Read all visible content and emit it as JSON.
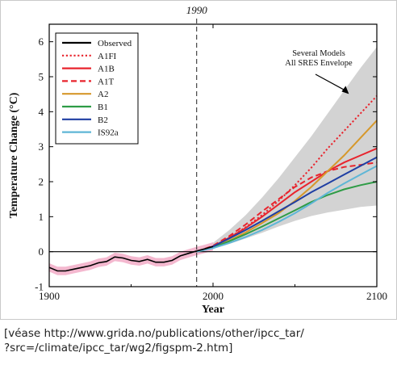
{
  "chart_data": {
    "type": "line",
    "top_label": "1990",
    "xlabel": "Year",
    "ylabel": "Temperature Change (°C)",
    "xlim": [
      1900,
      2100
    ],
    "ylim": [
      -1,
      6.5
    ],
    "x_ticks": [
      1900,
      2000,
      2100
    ],
    "y_ticks": [
      -1,
      0,
      1,
      2,
      3,
      4,
      5,
      6
    ],
    "vline_x": 1990,
    "grid": false,
    "legend_position": "top-left",
    "annotation": {
      "text": [
        "Several Models",
        "All SRES Envelope"
      ],
      "points_to": [
        2080,
        4.6
      ]
    },
    "envelope": {
      "x": [
        1990,
        2000,
        2010,
        2020,
        2030,
        2040,
        2050,
        2060,
        2070,
        2080,
        2090,
        2100
      ],
      "upper": [
        0,
        0.25,
        0.62,
        1.05,
        1.55,
        2.1,
        2.7,
        3.3,
        3.95,
        4.6,
        5.25,
        5.85
      ],
      "lower": [
        0,
        0.08,
        0.22,
        0.38,
        0.54,
        0.72,
        0.88,
        1.02,
        1.12,
        1.2,
        1.28,
        1.32
      ]
    },
    "observed": {
      "x": [
        1900,
        1905,
        1910,
        1915,
        1920,
        1925,
        1930,
        1935,
        1940,
        1945,
        1950,
        1955,
        1960,
        1965,
        1970,
        1975,
        1980,
        1985,
        1990,
        1995,
        2000
      ],
      "y": [
        -0.45,
        -0.55,
        -0.55,
        -0.5,
        -0.45,
        -0.4,
        -0.32,
        -0.28,
        -0.15,
        -0.18,
        -0.25,
        -0.28,
        -0.22,
        -0.3,
        -0.3,
        -0.25,
        -0.12,
        -0.05,
        0.02,
        0.08,
        0.15
      ],
      "band_halfwidth": 0.12
    },
    "series": [
      {
        "name": "Observed",
        "color": "#000000",
        "dash": "solid"
      },
      {
        "name": "A1FI",
        "color": "#e8242d",
        "dash": "dotted",
        "x": [
          1990,
          2000,
          2010,
          2020,
          2030,
          2040,
          2050,
          2060,
          2070,
          2080,
          2090,
          2100
        ],
        "y": [
          0,
          0.15,
          0.4,
          0.7,
          1.05,
          1.45,
          1.9,
          2.4,
          2.95,
          3.45,
          3.95,
          4.45
        ]
      },
      {
        "name": "A1B",
        "color": "#e8242d",
        "dash": "solid",
        "x": [
          1990,
          2000,
          2010,
          2020,
          2030,
          2040,
          2050,
          2060,
          2070,
          2080,
          2090,
          2100
        ],
        "y": [
          0,
          0.15,
          0.4,
          0.68,
          1.0,
          1.35,
          1.7,
          2.0,
          2.3,
          2.55,
          2.75,
          2.95
        ]
      },
      {
        "name": "A1T",
        "color": "#e8242d",
        "dash": "dashed",
        "x": [
          1990,
          2000,
          2010,
          2020,
          2030,
          2040,
          2050,
          2060,
          2070,
          2080,
          2090,
          2100
        ],
        "y": [
          0,
          0.17,
          0.45,
          0.78,
          1.15,
          1.5,
          1.85,
          2.12,
          2.3,
          2.42,
          2.48,
          2.55
        ]
      },
      {
        "name": "A2",
        "color": "#d6982b",
        "dash": "solid",
        "x": [
          1990,
          2000,
          2010,
          2020,
          2030,
          2040,
          2050,
          2060,
          2070,
          2080,
          2090,
          2100
        ],
        "y": [
          0,
          0.12,
          0.32,
          0.55,
          0.82,
          1.1,
          1.45,
          1.85,
          2.3,
          2.75,
          3.25,
          3.75
        ]
      },
      {
        "name": "B1",
        "color": "#2e9c46",
        "dash": "solid",
        "x": [
          1990,
          2000,
          2010,
          2020,
          2030,
          2040,
          2050,
          2060,
          2070,
          2080,
          2090,
          2100
        ],
        "y": [
          0,
          0.12,
          0.3,
          0.5,
          0.72,
          0.95,
          1.18,
          1.42,
          1.62,
          1.78,
          1.9,
          2.0
        ]
      },
      {
        "name": "B2",
        "color": "#1f3ea3",
        "dash": "solid",
        "x": [
          1990,
          2000,
          2010,
          2020,
          2030,
          2040,
          2050,
          2060,
          2070,
          2080,
          2090,
          2100
        ],
        "y": [
          0,
          0.15,
          0.38,
          0.62,
          0.88,
          1.15,
          1.42,
          1.7,
          1.95,
          2.2,
          2.45,
          2.7
        ]
      },
      {
        "name": "IS92a",
        "color": "#5fb6d6",
        "dash": "solid",
        "x": [
          1990,
          2000,
          2010,
          2020,
          2030,
          2040,
          2050,
          2060,
          2070,
          2080,
          2090,
          2100
        ],
        "y": [
          0,
          0.1,
          0.25,
          0.42,
          0.62,
          0.85,
          1.1,
          1.38,
          1.68,
          1.95,
          2.2,
          2.45
        ]
      }
    ]
  },
  "caption": {
    "line1": "[véase http://www.grida.no/publications/other/ipcc_tar/",
    "line2": "?src=/climate/ipcc_tar/wg2/figspm-2.htm]"
  }
}
